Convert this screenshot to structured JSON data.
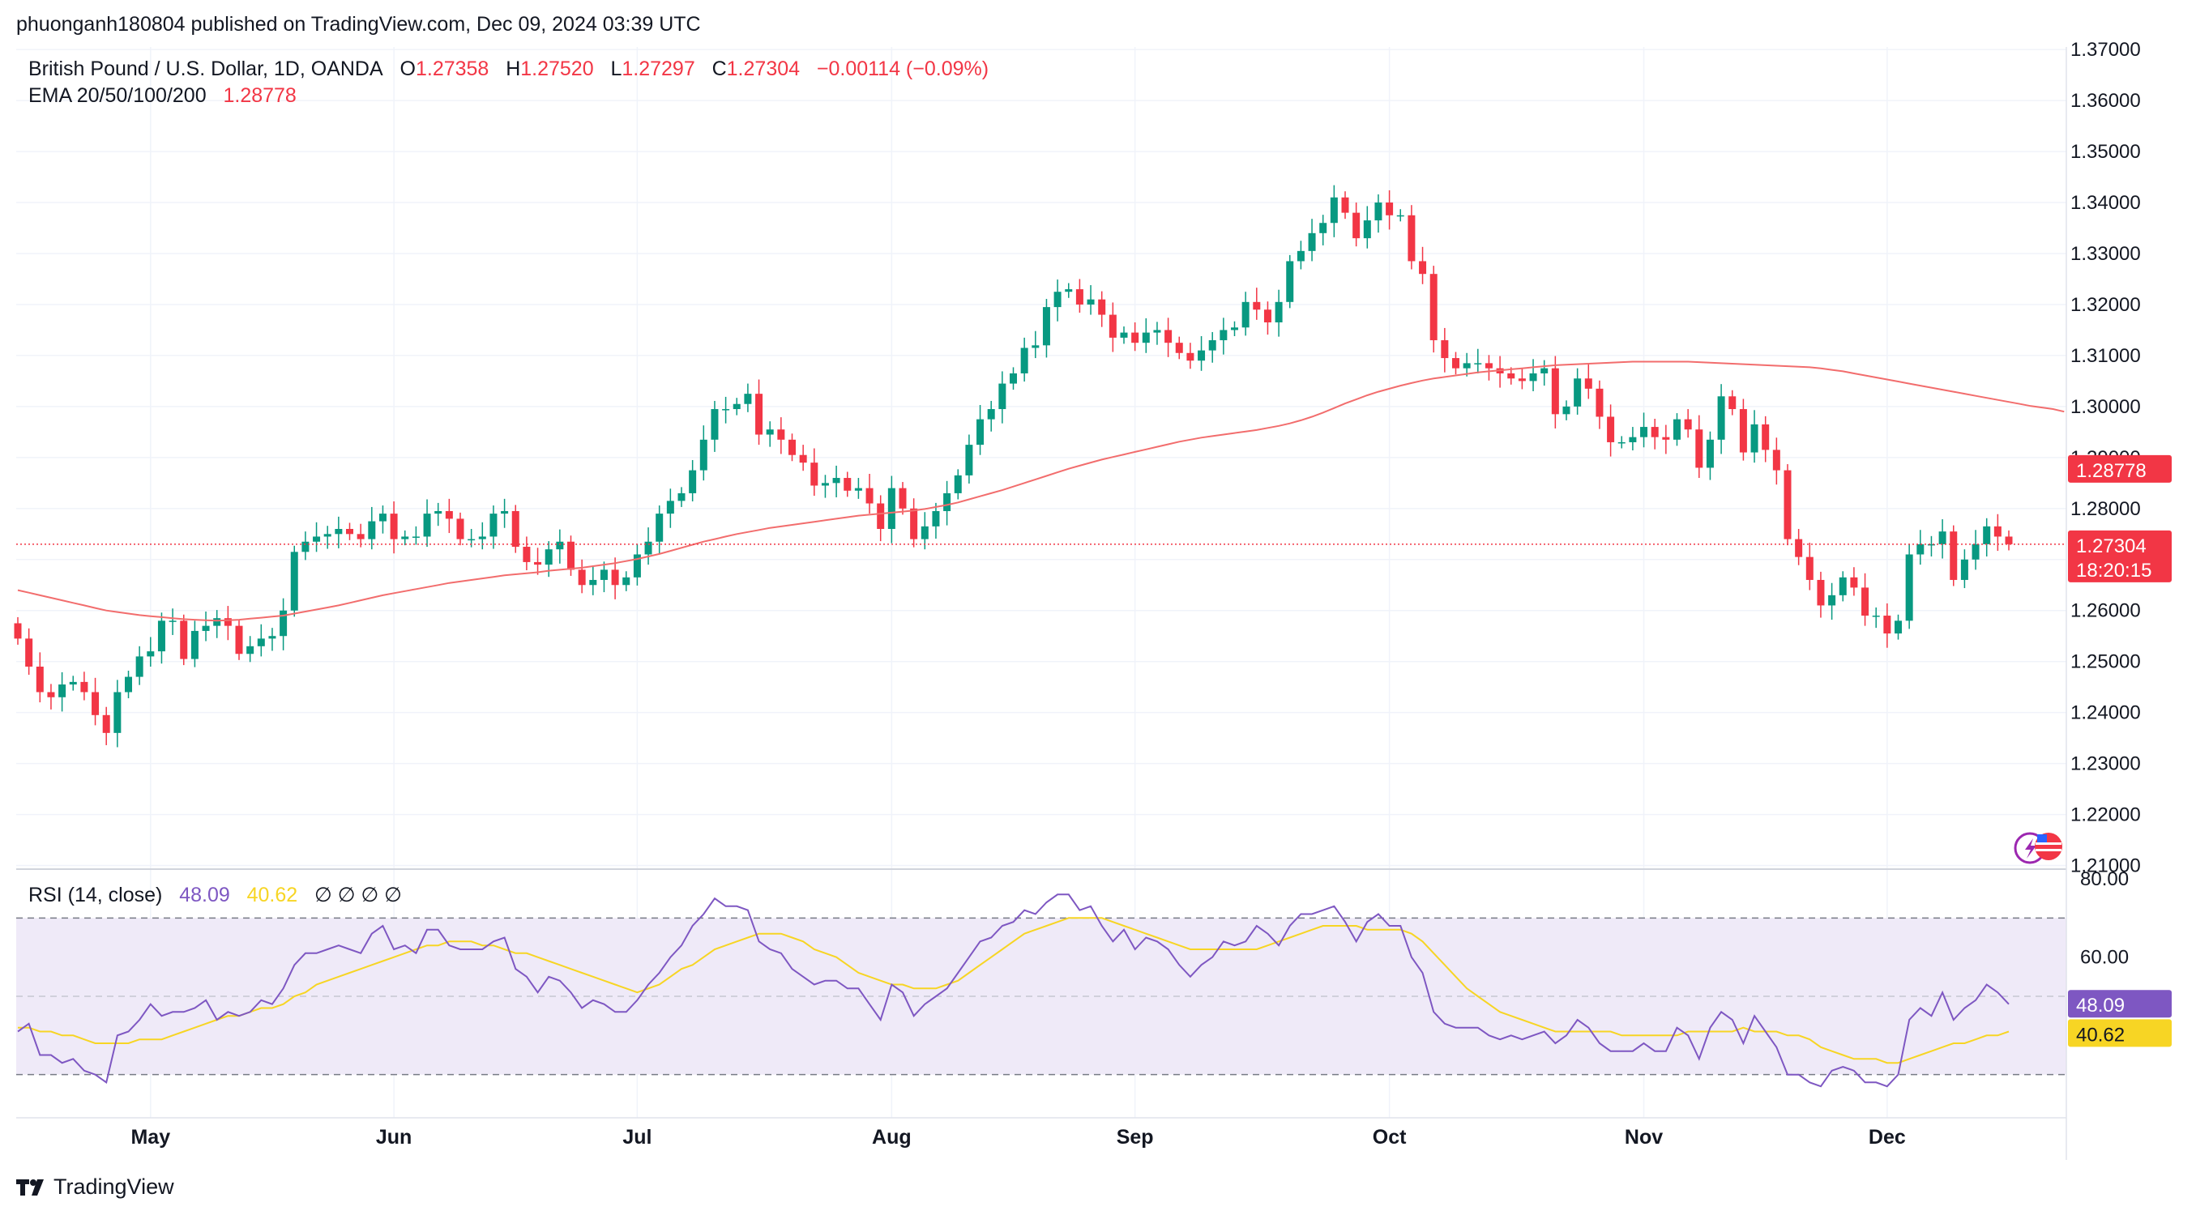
{
  "header": {
    "publish_line": "phuonganh180804 published on TradingView.com, Dec 09, 2024 03:39 UTC"
  },
  "legend": {
    "symbol": "British Pound / U.S. Dollar, 1D, OANDA",
    "open_label": "O",
    "open_value": "1.27358",
    "high_label": "H",
    "high_value": "1.27520",
    "low_label": "L",
    "low_value": "1.27297",
    "close_label": "C",
    "close_value": "1.27304",
    "change": "−0.00114 (−0.09%)",
    "ema_label": "EMA 20/50/100/200",
    "ema_value": "1.28778",
    "rsi_label": "RSI (14, close)",
    "rsi_value": "48.09",
    "rsi_ma_value": "40.62",
    "rsi_extra": "∅ ∅ ∅ ∅"
  },
  "footer": {
    "brand": "TradingView"
  },
  "colors": {
    "up": "#089981",
    "down": "#f23645",
    "ema": "#f26d6d",
    "rsi": "#7e57c2",
    "rsi_ma": "#f7d524",
    "rsi_band": "#efeaf8",
    "grid": "#f0f3fa",
    "text": "#131722"
  },
  "chart_data": [
    {
      "type": "candlestick",
      "title": "British Pound / U.S. Dollar, 1D, OANDA",
      "y_ticks": [
        "1.37000",
        "1.36000",
        "1.35000",
        "1.34000",
        "1.33000",
        "1.32000",
        "1.31000",
        "1.30000",
        "1.29000",
        "1.28000",
        "1.27000",
        "1.26000",
        "1.25000",
        "1.24000",
        "1.23000",
        "1.22000",
        "1.21000"
      ],
      "ylim": [
        1.2085,
        1.3705
      ],
      "x_labels": [
        "May",
        "Jun",
        "Jul",
        "Aug",
        "Sep",
        "Oct",
        "Nov",
        "Dec"
      ],
      "x_label_index": [
        12,
        34,
        56,
        79,
        101,
        124,
        147,
        169
      ],
      "last_price_label": "1.27304",
      "countdown_label": "18:20:15",
      "ema_label": "1.28778",
      "close": [
        1.2545,
        1.249,
        1.244,
        1.243,
        1.2455,
        1.246,
        1.244,
        1.2395,
        1.236,
        1.244,
        1.247,
        1.251,
        1.252,
        1.258,
        1.258,
        1.2505,
        1.256,
        1.257,
        1.2585,
        1.257,
        1.2515,
        1.253,
        1.2545,
        1.255,
        1.26,
        1.2715,
        1.2735,
        1.2745,
        1.275,
        1.276,
        1.275,
        1.274,
        1.2775,
        1.279,
        1.274,
        1.2745,
        1.2745,
        1.279,
        1.2795,
        1.278,
        1.274,
        1.274,
        1.2745,
        1.279,
        1.2795,
        1.2725,
        1.2695,
        1.269,
        1.272,
        1.2735,
        1.268,
        1.265,
        1.266,
        1.268,
        1.265,
        1.2665,
        1.271,
        1.2735,
        1.279,
        1.2815,
        1.283,
        1.2875,
        1.2935,
        1.2995,
        1.2995,
        1.3005,
        1.3025,
        1.2945,
        1.2955,
        1.2935,
        1.2905,
        1.289,
        1.2845,
        1.285,
        1.286,
        1.2835,
        1.284,
        1.281,
        1.276,
        1.284,
        1.28,
        1.274,
        1.2765,
        1.2795,
        1.283,
        1.2865,
        1.2925,
        1.2975,
        1.2995,
        1.3045,
        1.3065,
        1.3115,
        1.312,
        1.3195,
        1.3225,
        1.323,
        1.32,
        1.321,
        1.318,
        1.3135,
        1.3145,
        1.3125,
        1.3145,
        1.315,
        1.3125,
        1.3105,
        1.309,
        1.311,
        1.313,
        1.315,
        1.3155,
        1.3205,
        1.319,
        1.3165,
        1.3205,
        1.3285,
        1.3305,
        1.334,
        1.336,
        1.341,
        1.338,
        1.333,
        1.3365,
        1.34,
        1.3375,
        1.3375,
        1.3285,
        1.326,
        1.313,
        1.3095,
        1.3075,
        1.3085,
        1.3085,
        1.3075,
        1.3065,
        1.3055,
        1.305,
        1.3065,
        1.3075,
        1.2985,
        1.3,
        1.3055,
        1.3035,
        1.298,
        1.293,
        1.293,
        1.294,
        1.296,
        1.294,
        1.2935,
        1.2975,
        1.2955,
        1.288,
        1.2935,
        1.302,
        1.2995,
        1.291,
        1.2965,
        1.2915,
        1.2875,
        1.274,
        1.2705,
        1.266,
        1.261,
        1.263,
        1.2665,
        1.2645,
        1.259,
        1.259,
        1.2555,
        1.258,
        1.271,
        1.273,
        1.273,
        1.2755,
        1.266,
        1.27,
        1.273,
        1.2765,
        1.2745,
        1.273
      ],
      "ema200": [
        1.264,
        1.2635,
        1.263,
        1.2625,
        1.262,
        1.2615,
        1.261,
        1.2605,
        1.26,
        1.2597,
        1.2594,
        1.2591,
        1.2589,
        1.2587,
        1.2585,
        1.2583,
        1.2582,
        1.2581,
        1.258,
        1.2581,
        1.2582,
        1.2584,
        1.2586,
        1.2588,
        1.259,
        1.2594,
        1.2598,
        1.2602,
        1.2606,
        1.261,
        1.2615,
        1.262,
        1.2625,
        1.263,
        1.2634,
        1.2638,
        1.2642,
        1.2646,
        1.265,
        1.2654,
        1.2657,
        1.266,
        1.2663,
        1.2666,
        1.2669,
        1.2671,
        1.2673,
        1.2675,
        1.2678,
        1.268,
        1.2682,
        1.2684,
        1.2687,
        1.269,
        1.2693,
        1.2697,
        1.2701,
        1.2706,
        1.2711,
        1.2717,
        1.2723,
        1.2729,
        1.2735,
        1.274,
        1.2745,
        1.275,
        1.2754,
        1.2758,
        1.2762,
        1.2765,
        1.2768,
        1.2771,
        1.2774,
        1.2777,
        1.278,
        1.2783,
        1.2786,
        1.2788,
        1.279,
        1.2792,
        1.2794,
        1.2796,
        1.2799,
        1.2803,
        1.2807,
        1.2812,
        1.2818,
        1.2824,
        1.283,
        1.2836,
        1.2843,
        1.285,
        1.2857,
        1.2864,
        1.2871,
        1.2878,
        1.2884,
        1.289,
        1.2896,
        1.2901,
        1.2906,
        1.2911,
        1.2916,
        1.2921,
        1.2926,
        1.2931,
        1.2935,
        1.2939,
        1.2942,
        1.2945,
        1.2948,
        1.2951,
        1.2954,
        1.2958,
        1.2962,
        1.2967,
        1.2973,
        1.298,
        1.2988,
        1.2997,
        1.3006,
        1.3014,
        1.3022,
        1.3029,
        1.3035,
        1.3041,
        1.3046,
        1.3051,
        1.3055,
        1.3058,
        1.3061,
        1.3064,
        1.3067,
        1.3069,
        1.3071,
        1.3073,
        1.3075,
        1.3077,
        1.3079,
        1.3081,
        1.3082,
        1.3083,
        1.3084,
        1.3085,
        1.3086,
        1.3087,
        1.3088,
        1.3088,
        1.3088,
        1.3088,
        1.3088,
        1.3088,
        1.3087,
        1.3086,
        1.3085,
        1.3084,
        1.3083,
        1.3082,
        1.3081,
        1.308,
        1.3079,
        1.3078,
        1.3077,
        1.3075,
        1.3072,
        1.3069,
        1.3065,
        1.3061,
        1.3057,
        1.3053,
        1.3049,
        1.3045,
        1.3041,
        1.3037,
        1.3033,
        1.3029,
        1.3025,
        1.3021,
        1.3017,
        1.3013,
        1.3009,
        1.3005,
        1.3001,
        1.2998,
        1.2995,
        1.299
      ]
    },
    {
      "type": "line",
      "title": "RSI (14, close)",
      "y_ticks": [
        "80.00",
        "60.00"
      ],
      "ylim": [
        20,
        80
      ],
      "band": [
        30,
        70
      ],
      "series": [
        {
          "name": "RSI",
          "values": [
            41,
            43,
            35,
            35,
            33,
            34,
            31,
            30,
            28,
            40,
            41,
            44,
            48,
            45,
            46,
            46,
            47,
            49,
            44,
            46,
            45,
            46,
            49,
            48,
            52,
            58,
            61,
            61,
            62,
            63,
            62,
            61,
            66,
            68,
            62,
            63,
            61,
            67,
            67,
            63,
            62,
            62,
            62,
            64,
            65,
            57,
            55,
            51,
            55,
            54,
            51,
            47,
            49,
            48,
            46,
            46,
            49,
            53,
            56,
            60,
            63,
            68,
            71,
            75,
            73,
            73,
            72,
            64,
            62,
            61,
            57,
            55,
            53,
            54,
            54,
            52,
            52,
            48,
            44,
            53,
            51,
            45,
            48,
            50,
            52,
            56,
            60,
            64,
            65,
            68,
            69,
            72,
            71,
            74,
            76,
            76,
            72,
            73,
            68,
            64,
            67,
            62,
            65,
            64,
            62,
            58,
            55,
            58,
            60,
            64,
            63,
            64,
            68,
            66,
            63,
            68,
            71,
            71,
            72,
            73,
            69,
            64,
            69,
            71,
            68,
            68,
            60,
            56,
            46,
            43,
            42,
            42,
            42,
            40,
            39,
            40,
            39,
            40,
            41,
            38,
            40,
            44,
            42,
            38,
            36,
            36,
            36,
            38,
            36,
            36,
            42,
            40,
            34,
            42,
            46,
            44,
            38,
            45,
            41,
            37,
            30,
            30,
            28,
            27,
            31,
            32,
            31,
            28,
            28,
            27,
            30,
            44,
            47,
            45,
            51,
            44,
            47,
            49,
            53,
            51,
            48
          ]
        },
        {
          "name": "RSI MA",
          "values": [
            42,
            42,
            41,
            41,
            40,
            40,
            39,
            38,
            38,
            38,
            38,
            39,
            39,
            39,
            40,
            41,
            42,
            43,
            44,
            45,
            45,
            46,
            47,
            47,
            48,
            50,
            51,
            53,
            54,
            55,
            56,
            57,
            58,
            59,
            60,
            61,
            62,
            63,
            63,
            64,
            64,
            64,
            63,
            63,
            62,
            61,
            61,
            60,
            59,
            58,
            57,
            56,
            55,
            54,
            53,
            52,
            51,
            52,
            53,
            55,
            57,
            58,
            60,
            62,
            63,
            64,
            65,
            66,
            66,
            66,
            65,
            64,
            62,
            61,
            60,
            58,
            56,
            55,
            54,
            53,
            53,
            52,
            52,
            52,
            53,
            54,
            56,
            58,
            60,
            62,
            64,
            66,
            67,
            68,
            69,
            70,
            70,
            70,
            70,
            69,
            68,
            67,
            66,
            65,
            64,
            63,
            62,
            62,
            62,
            62,
            62,
            62,
            62,
            63,
            64,
            65,
            66,
            67,
            68,
            68,
            68,
            68,
            67,
            67,
            67,
            67,
            66,
            64,
            61,
            58,
            55,
            52,
            50,
            48,
            46,
            45,
            44,
            43,
            42,
            41,
            41,
            41,
            41,
            41,
            41,
            40,
            40,
            40,
            40,
            40,
            40,
            41,
            41,
            41,
            41,
            41,
            42,
            41,
            41,
            41,
            40,
            40,
            39,
            37,
            36,
            35,
            34,
            34,
            34,
            33,
            33,
            34,
            35,
            36,
            37,
            38,
            38,
            39,
            40,
            40,
            41
          ]
        }
      ]
    }
  ]
}
